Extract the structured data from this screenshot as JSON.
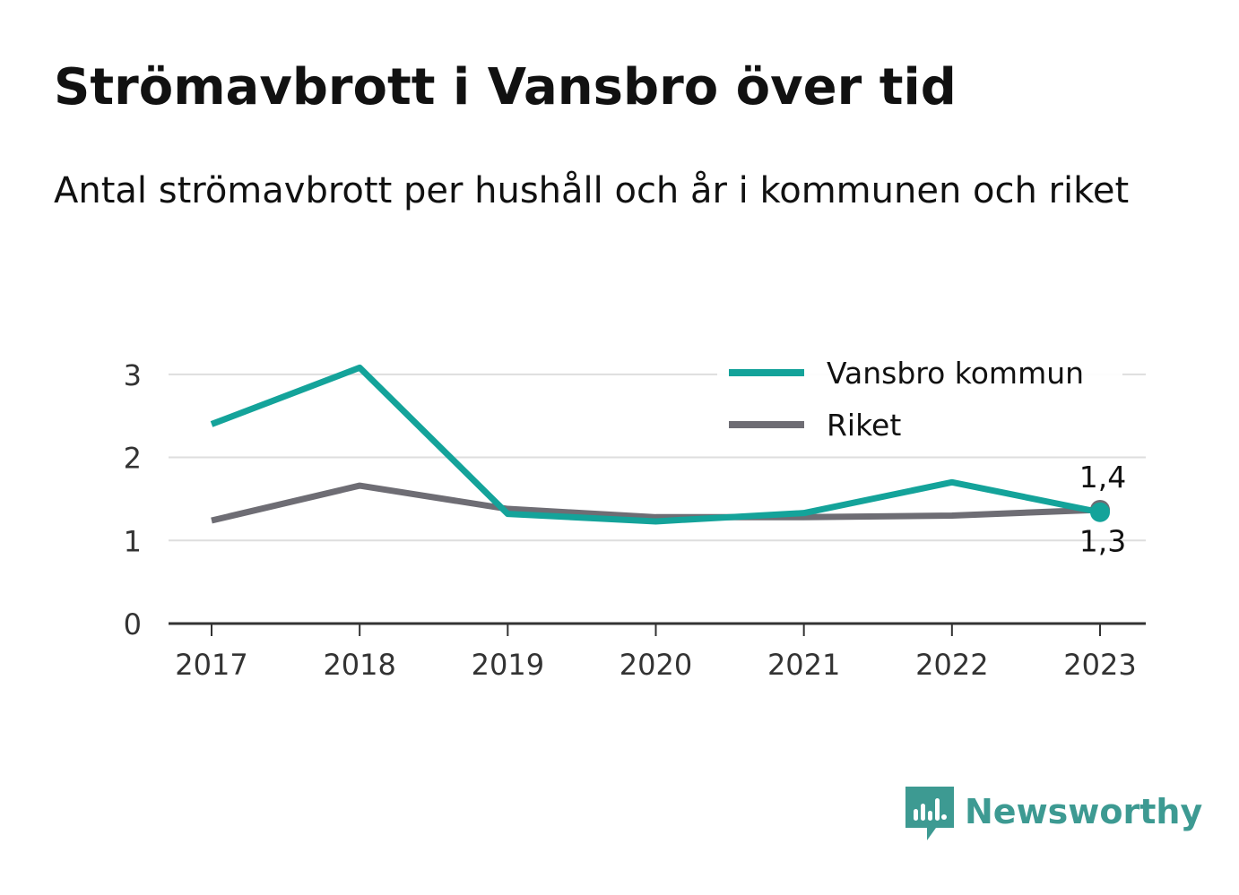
{
  "title": "Strömavbrott i Vansbro över tid",
  "subtitle": "Antal strömavbrott per hushåll och år i kommunen och riket",
  "brand": {
    "name": "Newsworthy",
    "icon": "newsworthy-logo-icon",
    "color": "#3d9a92"
  },
  "chart_data": {
    "type": "line",
    "title": "Strömavbrott i Vansbro över tid",
    "subtitle": "Antal strömavbrott per hushåll och år i kommunen och riket",
    "xlabel": "",
    "ylabel": "",
    "x": [
      "2017",
      "2018",
      "2019",
      "2020",
      "2021",
      "2022",
      "2023"
    ],
    "ylim": [
      0,
      3.3
    ],
    "yticks": [
      "0",
      "1",
      "2",
      "3"
    ],
    "ytick_values": [
      0,
      1,
      2,
      3
    ],
    "grid": true,
    "legend_position": "top-right",
    "series": [
      {
        "name": "Vansbro kommun",
        "color": "#14a39a",
        "values": [
          2.4,
          3.08,
          1.32,
          1.23,
          1.33,
          1.7,
          1.34
        ],
        "end_label": "1,3"
      },
      {
        "name": "Riket",
        "color": "#6e6d74",
        "values": [
          1.24,
          1.66,
          1.38,
          1.28,
          1.28,
          1.3,
          1.37
        ],
        "end_label": "1,4"
      }
    ]
  }
}
